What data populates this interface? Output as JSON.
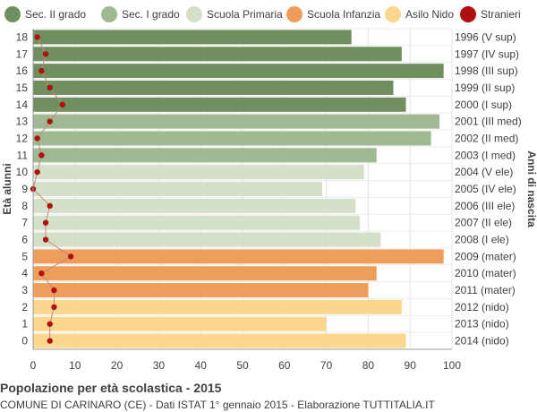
{
  "legend": [
    {
      "label": "Sec. II grado",
      "color": "#6f8f5e"
    },
    {
      "label": "Sec. I grado",
      "color": "#9fb993"
    },
    {
      "label": "Scuola Primaria",
      "color": "#d4e0c8"
    },
    {
      "label": "Scuola Infanzia",
      "color": "#ee9e5a"
    },
    {
      "label": "Asilo Nido",
      "color": "#fbd78e"
    },
    {
      "label": "Stranieri",
      "color": "#b0100f"
    }
  ],
  "footer": {
    "title": "Popolazione per età scolastica - 2015",
    "subtitle": "COMUNE DI CARINARO (CE) - Dati ISTAT 1° gennaio 2015 - Elaborazione TUTTITALIA.IT"
  },
  "chart_data": {
    "type": "bar",
    "orientation": "horizontal",
    "ylabel": "Età alunni",
    "ylabel_right": "Anni di nascita",
    "xlim": [
      0,
      100
    ],
    "xticks": [
      0,
      10,
      20,
      30,
      40,
      50,
      60,
      70,
      80,
      90,
      100
    ],
    "grid": true,
    "ages": [
      18,
      17,
      16,
      15,
      14,
      13,
      12,
      11,
      10,
      9,
      8,
      7,
      6,
      5,
      4,
      3,
      2,
      1,
      0
    ],
    "birth_years": [
      "1996 (V sup)",
      "1997 (IV sup)",
      "1998 (III sup)",
      "1999 (II sup)",
      "2000 (I sup)",
      "2001 (III med)",
      "2002 (II med)",
      "2003 (I med)",
      "2004 (V ele)",
      "2005 (IV ele)",
      "2006 (III ele)",
      "2007 (II ele)",
      "2008 (I ele)",
      "2009 (mater)",
      "2010 (mater)",
      "2011 (mater)",
      "2012 (nido)",
      "2013 (nido)",
      "2014 (nido)"
    ],
    "values": [
      76,
      88,
      98,
      86,
      89,
      97,
      95,
      82,
      79,
      69,
      77,
      78,
      83,
      98,
      82,
      80,
      88,
      70,
      89
    ],
    "categories": [
      "Sec. II grado",
      "Sec. II grado",
      "Sec. II grado",
      "Sec. II grado",
      "Sec. II grado",
      "Sec. I grado",
      "Sec. I grado",
      "Sec. I grado",
      "Scuola Primaria",
      "Scuola Primaria",
      "Scuola Primaria",
      "Scuola Primaria",
      "Scuola Primaria",
      "Scuola Infanzia",
      "Scuola Infanzia",
      "Scuola Infanzia",
      "Asilo Nido",
      "Asilo Nido",
      "Asilo Nido"
    ],
    "stranieri": [
      1,
      3,
      2,
      4,
      7,
      4,
      1,
      2,
      1,
      0,
      4,
      3,
      3,
      9,
      2,
      5,
      5,
      4,
      4
    ]
  }
}
